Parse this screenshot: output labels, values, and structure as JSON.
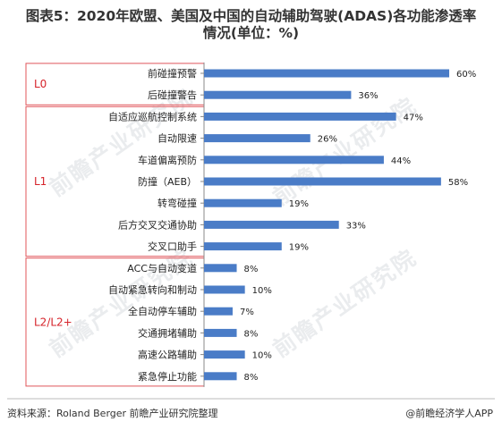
{
  "title_line1": "图表5：2020年欧盟、美国及中国的自动辅助驾驶(ADAS)各功能渗透率",
  "title_line2": "情况(单位：%)",
  "footer": {
    "source": "资料来源：Roland Berger 前瞻产业研究院整理",
    "brand": "@前瞻经济学人APP"
  },
  "watermark": "前瞻产业研究院",
  "colors": {
    "bar": "#4A7CC7",
    "group_border": "#E0555A",
    "group_label": "#D6232A"
  },
  "chart_data": {
    "type": "bar",
    "orientation": "horizontal",
    "title": "图表5：2020年欧盟、美国及中国的自动辅助驾驶(ADAS)各功能渗透率情况(单位：%)",
    "xlim": [
      0,
      70
    ],
    "unit": "%",
    "groups": [
      {
        "name": "L0",
        "count": 2
      },
      {
        "name": "L1",
        "count": 7
      },
      {
        "name": "L2/L2+",
        "count": 6
      }
    ],
    "categories": [
      "前碰撞预警",
      "后碰撞警告",
      "自适应巡航控制系统",
      "自动限速",
      "车道偏离预防",
      "防撞（AEB）",
      "转弯碰撞",
      "后方交叉交通协助",
      "交叉口助手",
      "ACC与自动变道",
      "自动紧急转向和制动",
      "全自动停车辅助",
      "交通拥堵辅助",
      "高速公路辅助",
      "紧急停止功能"
    ],
    "values": [
      60,
      36,
      47,
      26,
      44,
      58,
      19,
      33,
      19,
      8,
      10,
      7,
      8,
      10,
      8
    ],
    "data_labels": [
      "60%",
      "36%",
      "47%",
      "26%",
      "44%",
      "58%",
      "19%",
      "33%",
      "19%",
      "8%",
      "10%",
      "7%",
      "8%",
      "10%",
      "8%"
    ]
  }
}
